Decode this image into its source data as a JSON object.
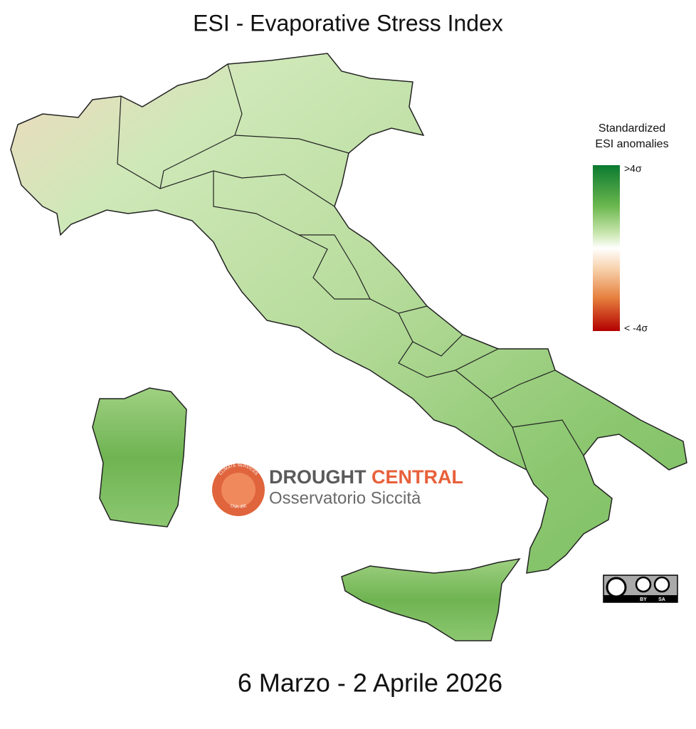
{
  "title": "ESI - Evaporative Stress Index",
  "legend": {
    "title_lines": [
      "Standardized",
      "ESI anomalies"
    ],
    "max_label": ">4σ",
    "min_label": "< -4σ"
  },
  "logo": {
    "ring_text_top": "CLIMATE SERVICES",
    "ring_text_bottom": "CNR-IBE",
    "name_part1": "DROUGHT",
    "name_part2": "CENTRAL",
    "subtitle": "Osservatorio Siccità"
  },
  "license": {
    "labels": [
      "BY",
      "SA"
    ]
  },
  "date": "6 Marzo - 2 Aprile 2026"
}
